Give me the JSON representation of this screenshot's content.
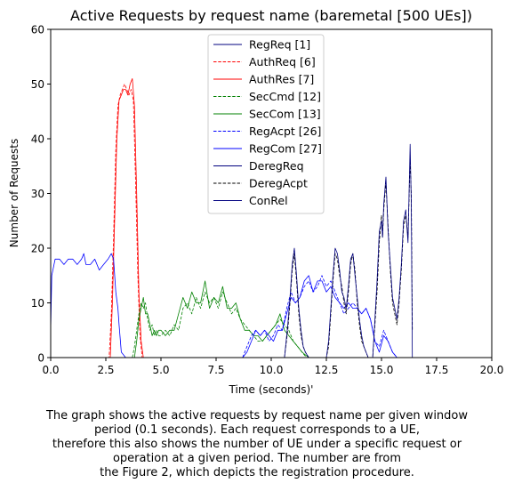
{
  "chart_data": {
    "type": "line",
    "title": "Active Requests by request name (baremetal [500 UEs])",
    "xlabel": "Time (seconds)'",
    "ylabel": "Number of Requests",
    "xlim": [
      0,
      20
    ],
    "ylim": [
      0,
      60
    ],
    "xticks": [
      "0.0",
      "2.5",
      "5.0",
      "7.5",
      "10.0",
      "12.5",
      "15.0",
      "17.5",
      "20.0"
    ],
    "xtick_values": [
      0,
      2.5,
      5,
      7.5,
      10,
      12.5,
      15,
      17.5,
      20
    ],
    "yticks": [
      "0",
      "10",
      "20",
      "30",
      "40",
      "50",
      "60"
    ],
    "ytick_values": [
      0,
      10,
      20,
      30,
      40,
      50,
      60
    ],
    "grid": false,
    "legend_position": "top-center",
    "series": [
      {
        "name": "RegReq [1]",
        "color": "#00007f",
        "dash": "solid",
        "x": [
          0,
          16.4
        ],
        "y": [
          0,
          0
        ]
      },
      {
        "name": "AuthReq [6]",
        "color": "#ff0000",
        "dash": "dashed",
        "x": [
          0,
          2.65,
          2.75,
          2.85,
          2.95,
          3.05,
          3.15,
          3.25,
          3.35,
          3.45,
          3.55,
          3.65,
          3.75,
          3.85,
          3.95,
          4.05,
          4.15,
          4.3,
          16.4
        ],
        "y": [
          0,
          0,
          8,
          22,
          38,
          46,
          48,
          49,
          50,
          49,
          48,
          49,
          47,
          32,
          15,
          4,
          0,
          0,
          0
        ]
      },
      {
        "name": "AuthRes [7]",
        "color": "#ff0000",
        "dash": "solid",
        "x": [
          0,
          2.7,
          2.8,
          2.9,
          3.0,
          3.1,
          3.2,
          3.3,
          3.4,
          3.5,
          3.6,
          3.7,
          3.8,
          3.9,
          4.0,
          4.1,
          4.2,
          16.4
        ],
        "y": [
          0,
          0,
          10,
          25,
          40,
          47,
          48,
          49,
          49,
          48,
          50,
          51,
          46,
          30,
          12,
          3,
          0,
          0
        ]
      },
      {
        "name": "SecCmd [12]",
        "color": "#008000",
        "dash": "dashed",
        "x": [
          3.7,
          3.8,
          3.9,
          4.0,
          4.1,
          4.2,
          4.3,
          4.4,
          4.5,
          4.6,
          4.7,
          4.8,
          4.9,
          5.0,
          5.2,
          5.4,
          5.6,
          5.8,
          6.0,
          6.2,
          6.4,
          6.6,
          6.8,
          7.0,
          7.2,
          7.4,
          7.6,
          7.8,
          8.0,
          8.2,
          8.4,
          8.6,
          8.8,
          9.0,
          9.2,
          9.4,
          9.6,
          9.8,
          10.0,
          10.2,
          10.4,
          10.6,
          10.8,
          11.0,
          11.2,
          11.4,
          11.6
        ],
        "y": [
          0,
          2,
          5,
          8,
          10,
          9,
          10,
          7,
          5,
          6,
          4,
          5,
          4,
          4,
          5,
          4,
          6,
          5,
          9,
          10,
          8,
          11,
          9,
          12,
          10,
          11,
          9,
          12,
          10,
          8,
          9,
          7,
          6,
          5,
          4,
          3,
          3,
          4,
          5,
          6,
          7,
          6,
          5,
          3,
          2,
          1,
          0
        ]
      },
      {
        "name": "SecCom [13]",
        "color": "#008000",
        "dash": "solid",
        "x": [
          3.8,
          3.9,
          4.0,
          4.1,
          4.2,
          4.3,
          4.4,
          4.5,
          4.6,
          4.7,
          4.8,
          4.9,
          5.0,
          5.2,
          5.4,
          5.6,
          5.8,
          6.0,
          6.2,
          6.4,
          6.6,
          6.8,
          7.0,
          7.2,
          7.4,
          7.6,
          7.8,
          8.0,
          8.2,
          8.4,
          8.6,
          8.8,
          9.0,
          9.2,
          9.4,
          9.6,
          9.8,
          10.0,
          10.2,
          10.4,
          10.6,
          10.8,
          11.0,
          11.2,
          11.4,
          11.7
        ],
        "y": [
          0,
          3,
          7,
          9,
          11,
          8,
          8,
          6,
          4,
          5,
          4,
          5,
          5,
          4,
          5,
          5,
          8,
          11,
          9,
          12,
          10,
          10,
          14,
          9,
          11,
          10,
          13,
          9,
          9,
          10,
          7,
          5,
          5,
          4,
          4,
          3,
          4,
          5,
          6,
          8,
          5,
          4,
          3,
          2,
          1,
          0
        ]
      },
      {
        "name": "RegAcpt [26]",
        "color": "#0000ff",
        "dash": "dashed",
        "x": [
          8.7,
          8.9,
          9.1,
          9.3,
          9.5,
          9.7,
          9.9,
          10.1,
          10.3,
          10.5,
          10.7,
          10.9,
          11.1,
          11.3,
          11.5,
          11.7,
          11.9,
          12.1,
          12.3,
          12.5,
          12.7,
          12.9,
          13.1,
          13.3,
          13.5,
          13.7,
          13.9,
          14.1,
          14.3,
          14.5,
          14.7,
          14.9,
          15.1,
          15.3,
          15.5,
          15.7,
          15.9,
          16.1,
          16.4
        ],
        "y": [
          0,
          2,
          4,
          5,
          4,
          5,
          3,
          4,
          6,
          5,
          9,
          12,
          10,
          11,
          13,
          14,
          12,
          13,
          15,
          13,
          14,
          12,
          10,
          8,
          9,
          10,
          9,
          8,
          9,
          7,
          3,
          2,
          5,
          3,
          1,
          0,
          0,
          0,
          0
        ]
      },
      {
        "name": "RegCom [27]",
        "color": "#0000ff",
        "dash": "solid",
        "x": [
          0,
          0.05,
          0.2,
          0.4,
          0.6,
          0.8,
          1.0,
          1.2,
          1.4,
          1.5,
          1.6,
          1.8,
          2.0,
          2.2,
          2.4,
          2.6,
          2.75,
          2.85,
          2.95,
          3.05,
          3.1,
          3.2,
          3.4,
          8.7,
          8.9,
          9.1,
          9.3,
          9.5,
          9.7,
          9.9,
          10.1,
          10.3,
          10.5,
          10.7,
          10.9,
          11.1,
          11.3,
          11.5,
          11.7,
          11.9,
          12.1,
          12.3,
          12.5,
          12.7,
          12.9,
          13.1,
          13.3,
          13.5,
          13.7,
          13.9,
          14.1,
          14.3,
          14.5,
          14.7,
          14.9,
          15.1,
          15.3,
          15.5,
          15.7,
          15.9,
          16.1,
          16.4
        ],
        "y": [
          5,
          15,
          18,
          18,
          17,
          18,
          18,
          17,
          18,
          19,
          17,
          17,
          18,
          16,
          17,
          18,
          19,
          18,
          12,
          9,
          6,
          1,
          0,
          0,
          1,
          3,
          5,
          4,
          5,
          4,
          3,
          5,
          5,
          8,
          11,
          10,
          11,
          14,
          15,
          12,
          14,
          14,
          12,
          13,
          11,
          10,
          9,
          10,
          9,
          9,
          8,
          9,
          7,
          3,
          1,
          4,
          3,
          1,
          0,
          0,
          0,
          0
        ]
      },
      {
        "name": "DeregReq",
        "color": "#00007f",
        "dash": "solid",
        "x": [
          0,
          16.4
        ],
        "y": [
          0,
          0
        ]
      },
      {
        "name": "DeregAcpt",
        "color": "#000000",
        "dash": "dashed",
        "x": [
          10.6,
          10.75,
          10.85,
          10.95,
          11.05,
          11.15,
          11.25,
          11.35,
          11.45,
          11.55,
          11.7,
          12.5,
          12.6,
          12.7,
          12.8,
          12.9,
          13.0,
          13.1,
          13.2,
          13.3,
          13.4,
          13.5,
          13.6,
          13.7,
          13.8,
          13.9,
          14.0,
          14.1,
          14.2,
          14.3,
          14.4,
          14.6,
          14.7,
          14.8,
          14.9,
          15.0,
          15.05,
          15.1,
          15.2,
          15.3,
          15.4,
          15.5,
          15.6,
          15.7,
          15.8,
          15.9,
          16.0,
          16.1,
          16.2,
          16.3,
          16.35,
          16.4
        ],
        "y": [
          0,
          5,
          10,
          16,
          19,
          14,
          8,
          4,
          2,
          1,
          0,
          0,
          2,
          8,
          14,
          19,
          18,
          15,
          13,
          10,
          8,
          12,
          17,
          19,
          16,
          10,
          6,
          3,
          2,
          1,
          0,
          0,
          6,
          12,
          21,
          26,
          22,
          27,
          32,
          24,
          16,
          10,
          8,
          6,
          10,
          16,
          24,
          26,
          22,
          36,
          30,
          5
        ]
      },
      {
        "name": "ConRel",
        "color": "#00007f",
        "dash": "solid",
        "x": [
          10.6,
          10.75,
          10.85,
          10.95,
          11.05,
          11.15,
          11.25,
          11.35,
          11.45,
          11.55,
          11.7,
          12.5,
          12.6,
          12.7,
          12.8,
          12.9,
          13.0,
          13.1,
          13.2,
          13.3,
          13.4,
          13.5,
          13.6,
          13.7,
          13.8,
          13.9,
          14.0,
          14.1,
          14.2,
          14.3,
          14.4,
          14.6,
          14.7,
          14.8,
          14.9,
          15.0,
          15.05,
          15.1,
          15.2,
          15.3,
          15.4,
          15.5,
          15.6,
          15.7,
          15.8,
          15.9,
          16.0,
          16.1,
          16.2,
          16.3,
          16.35,
          16.4
        ],
        "y": [
          0,
          6,
          11,
          17,
          20,
          15,
          9,
          5,
          2,
          1,
          0,
          0,
          3,
          9,
          15,
          20,
          19,
          16,
          12,
          11,
          9,
          13,
          18,
          19,
          15,
          11,
          7,
          4,
          2,
          1,
          0,
          0,
          7,
          14,
          23,
          25,
          22,
          28,
          33,
          23,
          17,
          11,
          9,
          7,
          11,
          17,
          25,
          27,
          21,
          39,
          28,
          0
        ]
      }
    ]
  },
  "caption_lines": [
    "The graph shows the active requests by request name per given window",
    "period (0.1 seconds). Each request corresponds to a UE,",
    "therefore this also shows the number of UE under a specific request or",
    "operation at a given period. The number are from",
    "the Figure 2, which depicts the registration procedure."
  ]
}
